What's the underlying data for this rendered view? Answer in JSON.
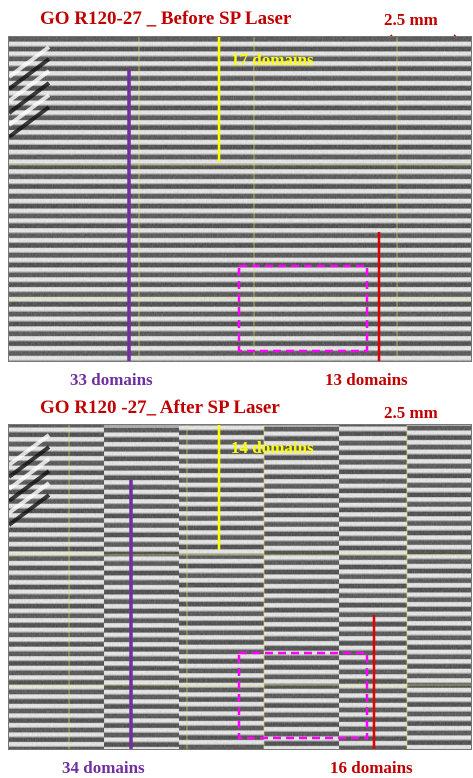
{
  "top_panel": {
    "title": "GO R120-27 _ Before SP Laser",
    "scale_label": "2.5 mm",
    "overlay_label": "17 domains",
    "left_count": "33 domains",
    "right_count": "13 domains",
    "stripe_count": 33
  },
  "bottom_panel": {
    "title": "GO R120 -27_ After SP Laser",
    "scale_label": "2.5 mm",
    "overlay_label": "14 domains",
    "left_count": "34 domains",
    "right_count": "16 domains",
    "stripe_count": 34
  },
  "colors": {
    "title": "#c00000",
    "purple_line": "#7030a0",
    "red_line": "#e00000",
    "yellow_marker": "#ffff00",
    "magenta_box": "#ff00ff",
    "grid": "#e0e070"
  }
}
